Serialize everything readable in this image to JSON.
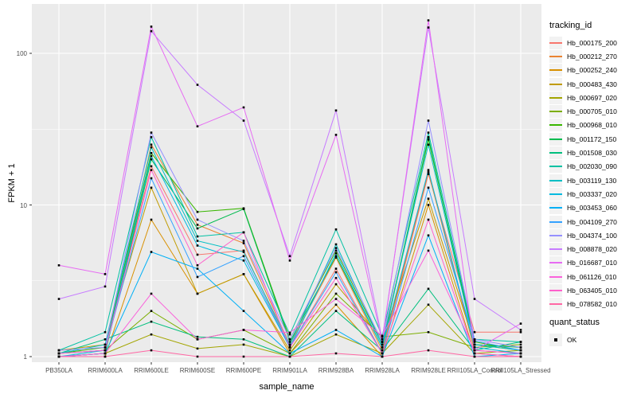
{
  "style": {
    "panel_bg": "#EBEBEB",
    "grid_color": "#FFFFFF",
    "tick_color": "#333333",
    "tick_label_color": "#4D4D4D",
    "axis_title_color": "#000000",
    "legend_key_bg": "#F2F2F2",
    "point_color": "#000000"
  },
  "legends": {
    "tracking": {
      "title": "tracking_id"
    },
    "quant": {
      "title": "quant_status",
      "entries": [
        {
          "label": "OK",
          "marker": "black-square"
        }
      ]
    }
  },
  "chart_data": {
    "type": "line",
    "title": "",
    "xlabel": "sample_name",
    "ylabel": "FPKM + 1",
    "yscale": "log10",
    "ylim": [
      0.92,
      215
    ],
    "y_ticks": [
      1,
      10,
      100
    ],
    "y_minor": [
      3.162,
      31.62
    ],
    "grid": true,
    "legend_position": "right",
    "point_shape": "black-square",
    "categories": [
      "PB350LA",
      "RRIM600LA",
      "RRIM600LE",
      "RRIM600SE",
      "RRIM600PE",
      "RRIM901LA",
      "RRIM928BA",
      "RRIM928LA",
      "RRIM928LE",
      "RRII105LA_Control",
      "RRII105LA_Stressed"
    ],
    "series": [
      {
        "name": "Hb_000175_200",
        "color": "#F8766D",
        "values": [
          1.05,
          1.1,
          18,
          4.7,
          5.0,
          1.15,
          3.8,
          1.05,
          16,
          1.45,
          1.45
        ]
      },
      {
        "name": "Hb_000212_270",
        "color": "#EA8331",
        "values": [
          1.0,
          1.05,
          25,
          7.4,
          5.6,
          1.2,
          4.5,
          1.1,
          16.5,
          1.1,
          1.05
        ]
      },
      {
        "name": "Hb_000252_240",
        "color": "#D89000",
        "values": [
          1.0,
          1.0,
          8.0,
          2.6,
          3.5,
          1.05,
          2.2,
          1.0,
          10,
          1.05,
          1.0
        ]
      },
      {
        "name": "Hb_000483_430",
        "color": "#C09B00",
        "values": [
          1.1,
          1.2,
          13,
          2.6,
          3.5,
          1.1,
          3.0,
          1.3,
          11,
          1.2,
          1.1
        ]
      },
      {
        "name": "Hb_000697_020",
        "color": "#A3A500",
        "values": [
          1.0,
          1.05,
          1.4,
          1.13,
          1.2,
          1.0,
          1.4,
          1.05,
          2.2,
          1.05,
          1.1
        ]
      },
      {
        "name": "Hb_000705_010",
        "color": "#7CAE00",
        "values": [
          1.05,
          1.1,
          2.0,
          1.3,
          1.5,
          1.05,
          2.6,
          1.35,
          1.45,
          1.15,
          1.2
        ]
      },
      {
        "name": "Hb_000968_010",
        "color": "#39B600",
        "values": [
          1.05,
          1.15,
          22,
          9.0,
          9.5,
          1.3,
          5.0,
          1.2,
          27,
          1.25,
          1.1
        ]
      },
      {
        "name": "Hb_001172_150",
        "color": "#00BB4E",
        "values": [
          1.0,
          1.05,
          20,
          7.0,
          9.4,
          1.25,
          4.6,
          1.15,
          28,
          1.2,
          1.15
        ]
      },
      {
        "name": "Hb_001508_030",
        "color": "#00BF7D",
        "values": [
          1.05,
          1.3,
          1.7,
          1.35,
          1.3,
          1.0,
          2.0,
          1.1,
          2.8,
          1.1,
          1.25
        ]
      },
      {
        "name": "Hb_002030_090",
        "color": "#00C1A3",
        "values": [
          1.1,
          1.45,
          28,
          6.2,
          6.6,
          1.4,
          6.9,
          1.37,
          30,
          1.3,
          1.25
        ]
      },
      {
        "name": "Hb_003119_130",
        "color": "#00BFC4",
        "values": [
          1.05,
          1.2,
          24,
          5.8,
          4.9,
          1.2,
          5.5,
          1.2,
          25,
          1.2,
          1.1
        ]
      },
      {
        "name": "Hb_003337_020",
        "color": "#00BAE0",
        "values": [
          1.0,
          1.1,
          21,
          5.4,
          4.3,
          1.15,
          4.8,
          1.15,
          17,
          1.15,
          1.05
        ]
      },
      {
        "name": "Hb_003453_060",
        "color": "#00B0F6",
        "values": [
          1.0,
          1.05,
          4.9,
          3.8,
          2.0,
          1.05,
          1.5,
          1.0,
          6.3,
          1.0,
          1.05
        ]
      },
      {
        "name": "Hb_004109_270",
        "color": "#35A2FF",
        "values": [
          1.05,
          1.1,
          15,
          3.35,
          4.6,
          1.16,
          3.6,
          1.05,
          13,
          1.27,
          1.1
        ]
      },
      {
        "name": "Hb_004374_100",
        "color": "#9590FF",
        "values": [
          1.1,
          1.15,
          30,
          8.0,
          5.8,
          1.3,
          5.2,
          1.25,
          36,
          1.3,
          1.15
        ]
      },
      {
        "name": "Hb_008878_020",
        "color": "#C77CFF",
        "values": [
          2.4,
          2.9,
          140,
          62,
          36,
          4.6,
          42,
          1.3,
          148,
          2.4,
          1.5
        ]
      },
      {
        "name": "Hb_016687_010",
        "color": "#E76BF3",
        "values": [
          4.0,
          3.5,
          150,
          33,
          44,
          4.3,
          29,
          1.25,
          165,
          1.1,
          1.65
        ]
      },
      {
        "name": "Hb_061126_010",
        "color": "#FA62DB",
        "values": [
          1.0,
          1.05,
          2.6,
          1.3,
          1.5,
          1.44,
          2.4,
          1.37,
          5.0,
          1.1,
          1.05
        ]
      },
      {
        "name": "Hb_063405_010",
        "color": "#FF61CC",
        "values": [
          1.05,
          1.1,
          17,
          4.0,
          6.6,
          1.15,
          3.3,
          1.05,
          8.0,
          1.05,
          1.0
        ]
      },
      {
        "name": "Hb_078582_010",
        "color": "#FF67A4",
        "values": [
          1.0,
          1.0,
          1.1,
          1.0,
          1.0,
          1.0,
          1.05,
          1.0,
          1.1,
          1.0,
          1.0
        ]
      }
    ]
  }
}
